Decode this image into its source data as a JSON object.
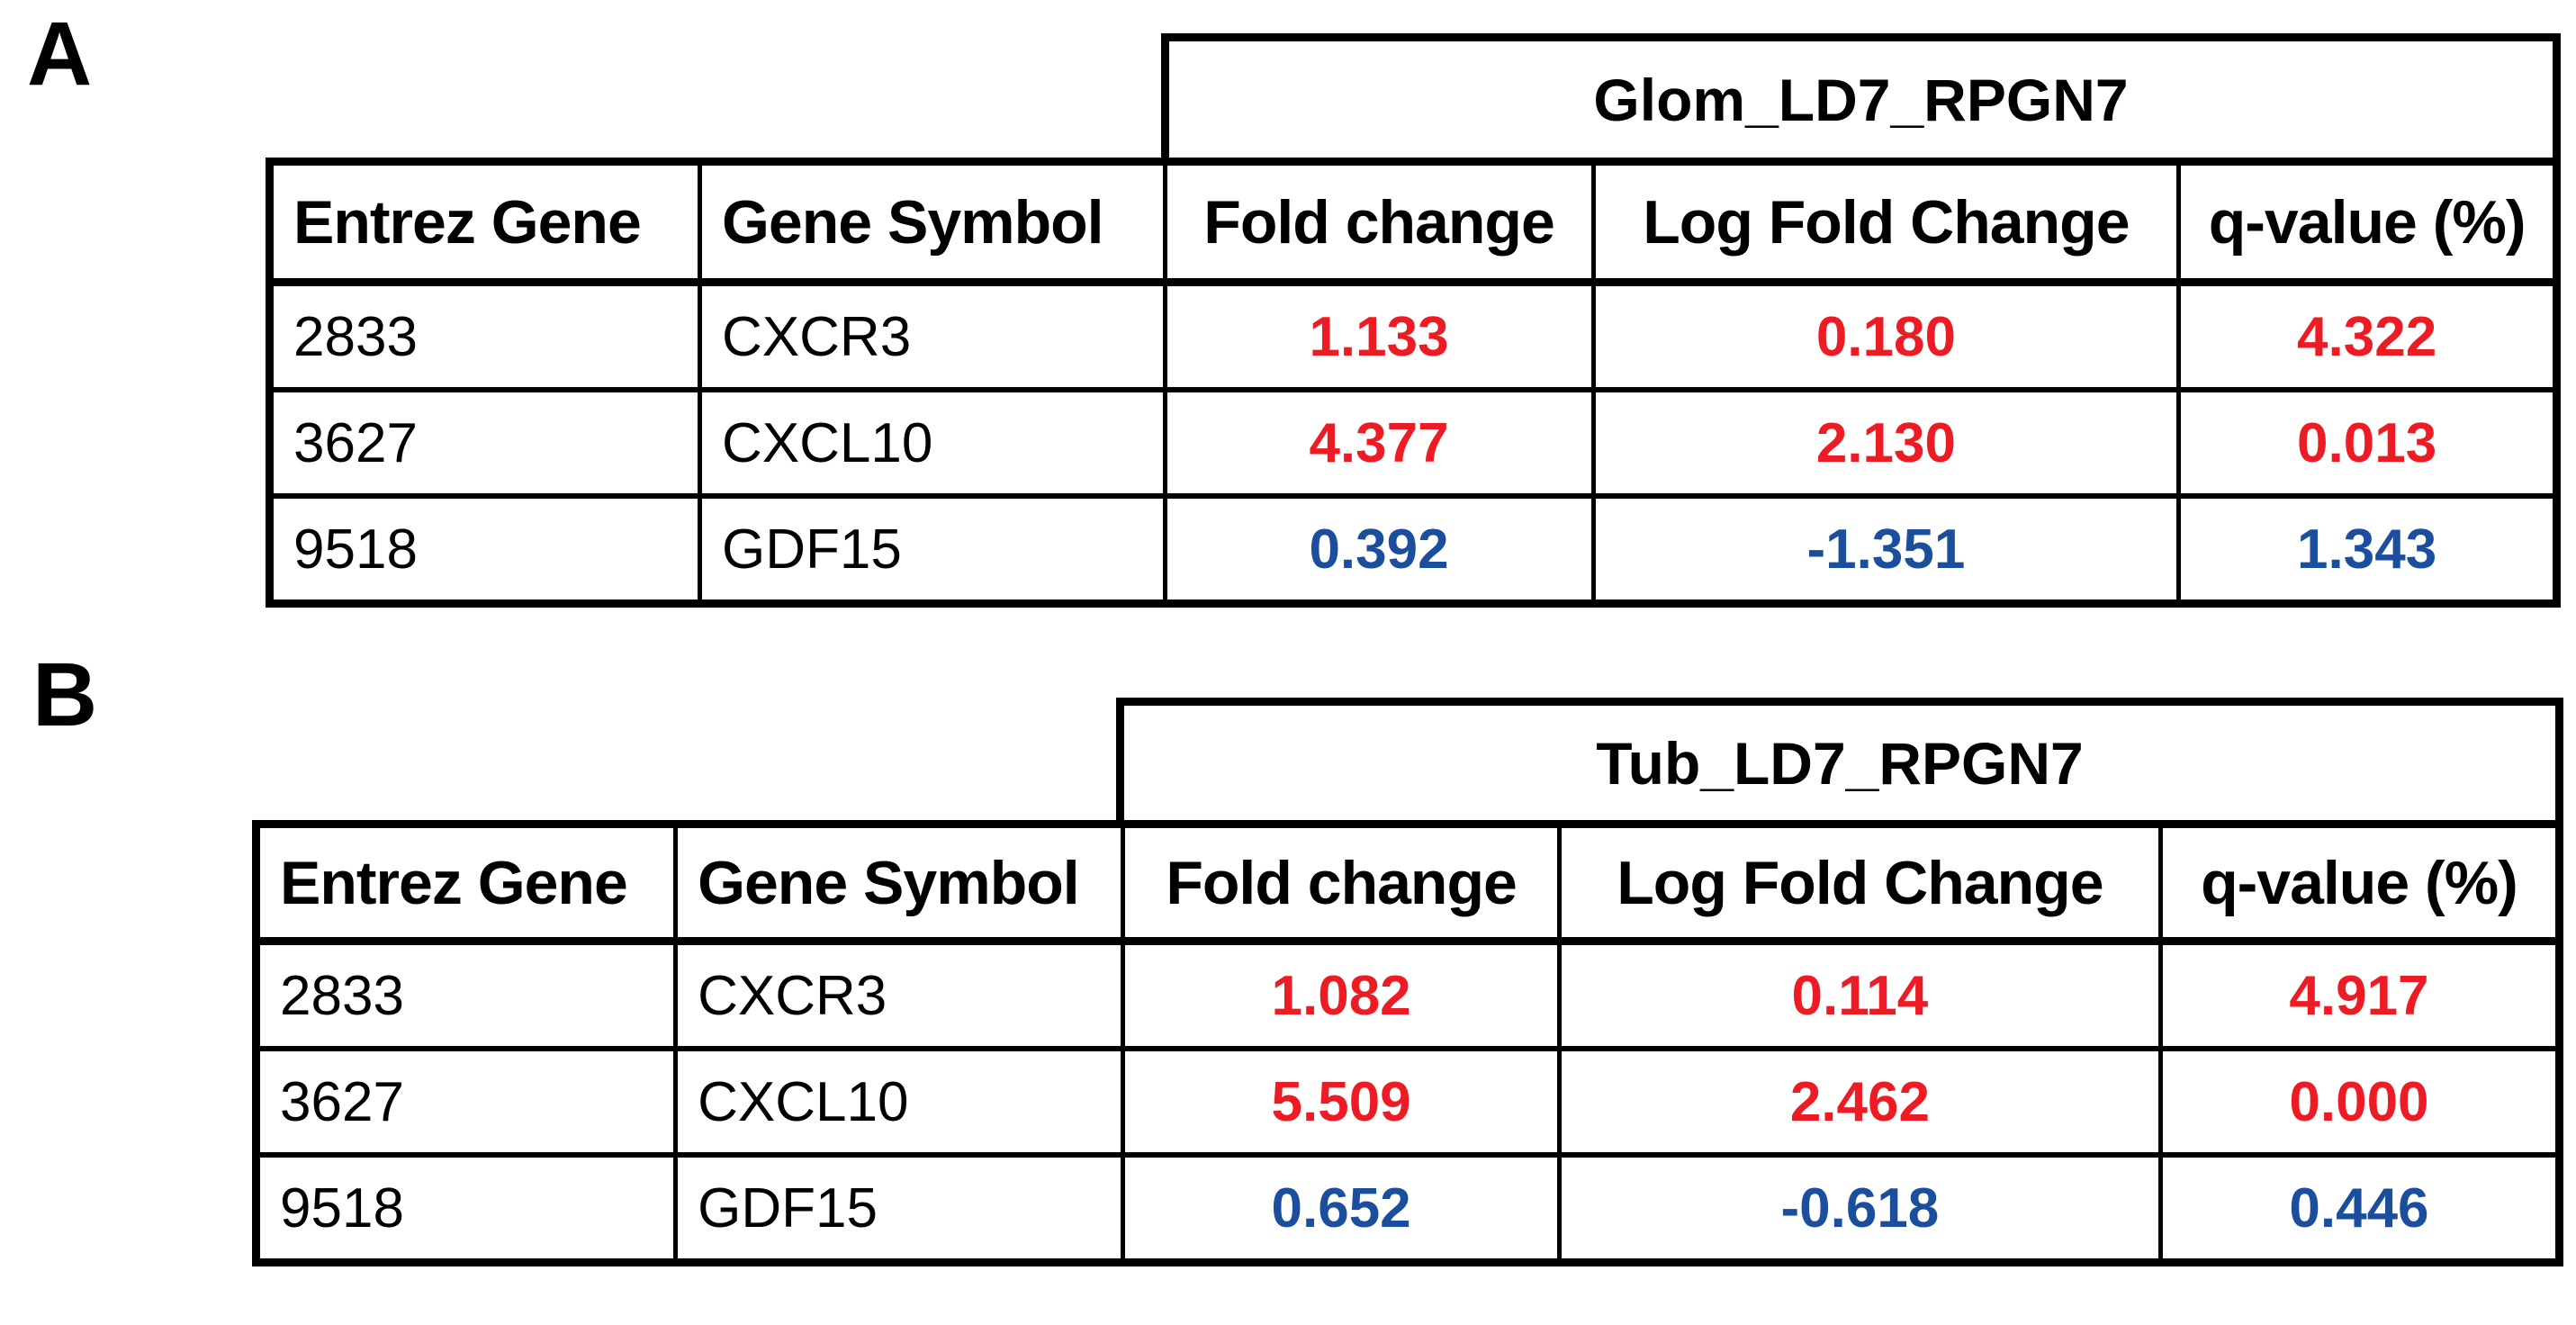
{
  "figure": {
    "panels": [
      {
        "label": "A",
        "group_header": "Glom_LD7_RPGN7",
        "columns": [
          "Entrez Gene",
          "Gene Symbol",
          "Fold change",
          "Log Fold Change",
          "q-value (%)"
        ],
        "rows": [
          {
            "entrez_gene": "2833",
            "gene_symbol": "CXCR3",
            "fold_change": "1.133",
            "log_fold_change": "0.180",
            "q_value": "4.322",
            "direction": "up"
          },
          {
            "entrez_gene": "3627",
            "gene_symbol": "CXCL10",
            "fold_change": "4.377",
            "log_fold_change": "2.130",
            "q_value": "0.013",
            "direction": "up"
          },
          {
            "entrez_gene": "9518",
            "gene_symbol": "GDF15",
            "fold_change": "0.392",
            "log_fold_change": "-1.351",
            "q_value": "1.343",
            "direction": "down"
          }
        ]
      },
      {
        "label": "B",
        "group_header": "Tub_LD7_RPGN7",
        "columns": [
          "Entrez Gene",
          "Gene Symbol",
          "Fold change",
          "Log Fold Change",
          "q-value (%)"
        ],
        "rows": [
          {
            "entrez_gene": "2833",
            "gene_symbol": "CXCR3",
            "fold_change": "1.082",
            "log_fold_change": "0.114",
            "q_value": "4.917",
            "direction": "up"
          },
          {
            "entrez_gene": "3627",
            "gene_symbol": "CXCL10",
            "fold_change": "5.509",
            "log_fold_change": "2.462",
            "q_value": "0.000",
            "direction": "up"
          },
          {
            "entrez_gene": "9518",
            "gene_symbol": "GDF15",
            "fold_change": "0.652",
            "log_fold_change": "-0.618",
            "q_value": "0.446",
            "direction": "down"
          }
        ]
      }
    ],
    "colors": {
      "upregulated": "#ed1c24",
      "downregulated": "#1b4e9d",
      "border": "#000000",
      "background": "#ffffff"
    }
  }
}
